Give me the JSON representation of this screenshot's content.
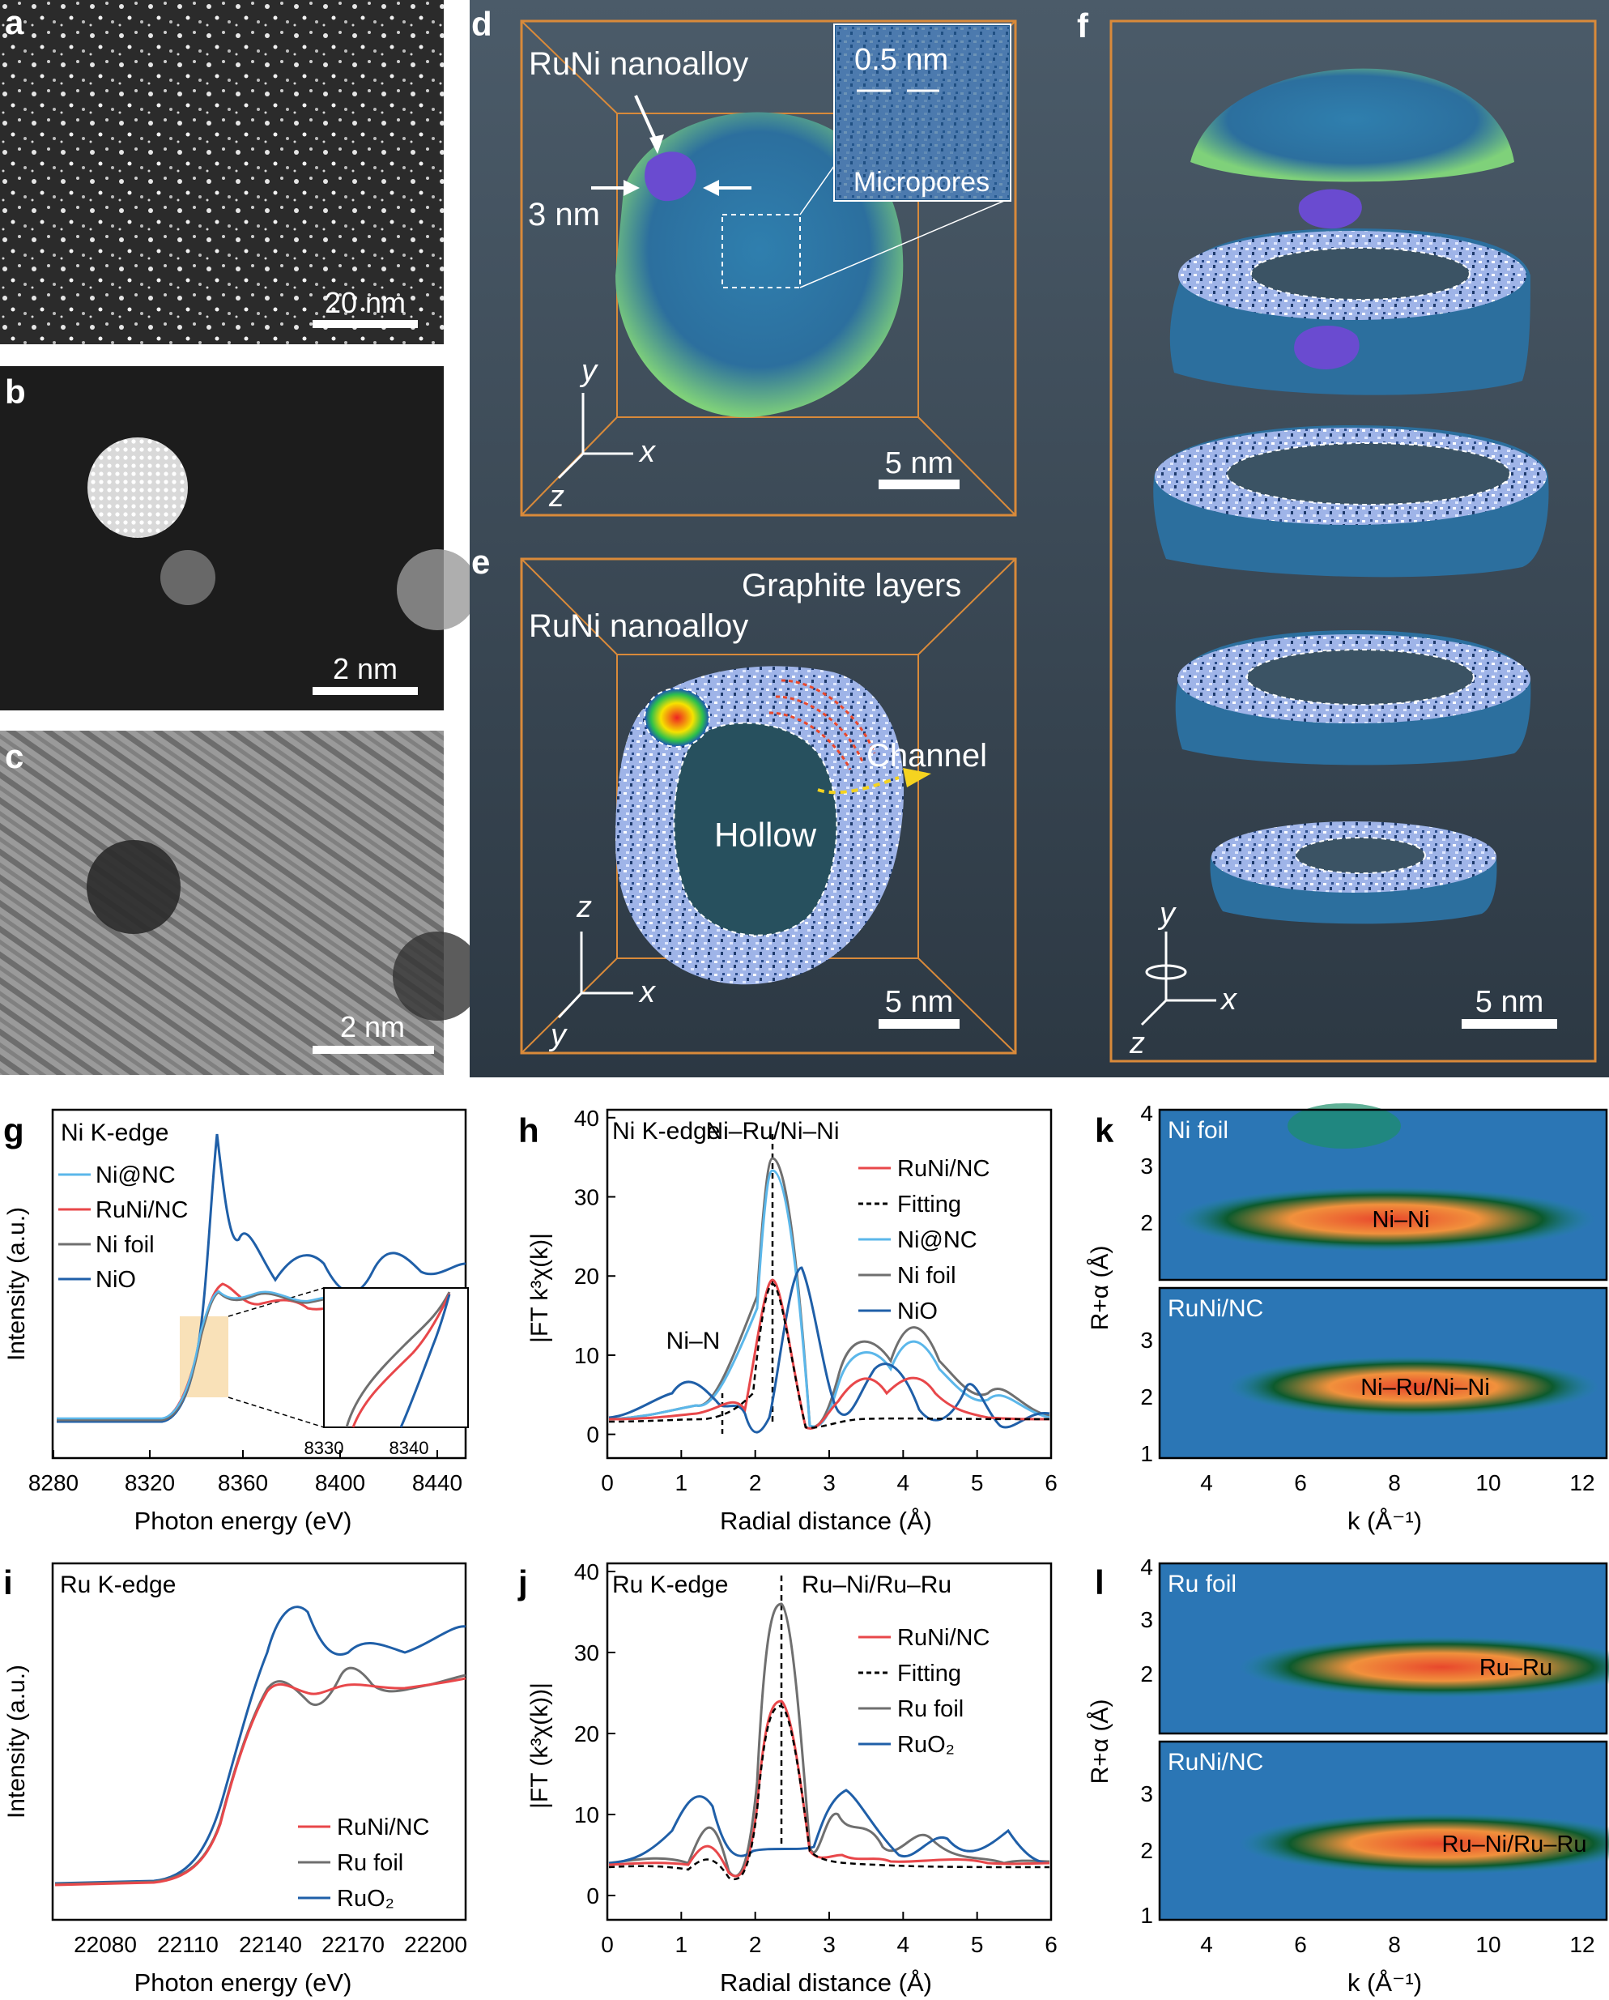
{
  "panel_letters": {
    "a": "a",
    "b": "b",
    "c": "c",
    "d": "d",
    "e": "e",
    "f": "f",
    "g": "g",
    "h": "h",
    "i": "i",
    "j": "j",
    "k": "k",
    "l": "l"
  },
  "scalebars": {
    "a": "20 nm",
    "b": "2 nm",
    "c": "2 nm",
    "d": "5 nm",
    "e": "5 nm",
    "f": "5 nm"
  },
  "panel_d": {
    "alloy_label": "RuNi nanoalloy",
    "size_label": "3 nm",
    "pore_label": "0.5 nm",
    "inset_label": "Micropores",
    "axis_y": "y",
    "axis_x": "x",
    "axis_z": "z"
  },
  "panel_e": {
    "alloy_label": "RuNi nanoalloy",
    "graphite_label": "Graphite layers",
    "channel_label": "Channel",
    "hollow_label": "Hollow",
    "axis_z": "z",
    "axis_x": "x",
    "axis_y": "y"
  },
  "panel_f": {
    "axis_y": "y",
    "axis_x": "x",
    "axis_z": "z"
  },
  "colors": {
    "runi": "#e8474a",
    "ni_nc": "#5bb7ea",
    "foil": "#6f6f6f",
    "oxide": "#1f5fa8",
    "fitting": "#000000",
    "orange_frame": "#d98a3a",
    "em_background": "#3d4d5c"
  },
  "chart_data": [
    {
      "id": "g",
      "type": "line",
      "title": "Ni K-edge",
      "xlabel": "Photon energy (eV)",
      "ylabel": "Intensity (a.u.)",
      "xlim": [
        8280,
        8450
      ],
      "xticks": [
        "8280",
        "8320",
        "8360",
        "8400",
        "8440"
      ],
      "series": [
        {
          "name": "Ni@NC"
        },
        {
          "name": "RuNi/NC"
        },
        {
          "name": "Ni foil"
        },
        {
          "name": "NiO"
        }
      ],
      "inset": {
        "xticks": [
          "8330",
          "8340"
        ],
        "xlim": [
          8327,
          8347
        ]
      }
    },
    {
      "id": "h",
      "type": "line",
      "title": "Ni K-edge",
      "xlabel": "Radial distance (Å)",
      "ylabel": "|FT k³χ(k)|",
      "xlim": [
        0,
        6
      ],
      "ylim": [
        -3,
        41
      ],
      "xticks": [
        "0",
        "1",
        "2",
        "3",
        "4",
        "5",
        "6"
      ],
      "yticks": [
        "0",
        "10",
        "20",
        "30",
        "40"
      ],
      "annotations": [
        "Ni–Ru/Ni–Ni",
        "Ni–N"
      ],
      "series": [
        {
          "name": "RuNi/NC"
        },
        {
          "name": "Fitting"
        },
        {
          "name": "Ni@NC"
        },
        {
          "name": "Ni foil"
        },
        {
          "name": "NiO"
        }
      ]
    },
    {
      "id": "k",
      "type": "heatmap",
      "xlabel": "k (Å⁻¹)",
      "ylabel": "R+α (Å)",
      "xlim": [
        3,
        12.5
      ],
      "ylim": [
        1,
        4
      ],
      "xticks": [
        "4",
        "6",
        "8",
        "10",
        "12"
      ],
      "yticks_top": [
        "2",
        "3",
        "4"
      ],
      "yticks_bottom": [
        "1",
        "2",
        "3"
      ],
      "maps": [
        {
          "name": "Ni foil",
          "label": "Ni–Ni"
        },
        {
          "name": "RuNi/NC",
          "label": "Ni–Ru/Ni–Ni"
        }
      ]
    },
    {
      "id": "i",
      "type": "line",
      "title": "Ru K-edge",
      "xlabel": "Photon energy (eV)",
      "ylabel": "Intensity (a.u.)",
      "xlim": [
        22060,
        22210
      ],
      "xticks": [
        "22080",
        "22110",
        "22140",
        "22170",
        "22200"
      ],
      "series": [
        {
          "name": "RuNi/NC"
        },
        {
          "name": "Ru foil"
        },
        {
          "name": "RuO₂"
        }
      ]
    },
    {
      "id": "j",
      "type": "line",
      "title": "Ru K-edge",
      "xlabel": "Radial distance (Å)",
      "ylabel": "|FT (k³χ(k))|",
      "xlim": [
        0,
        6
      ],
      "ylim": [
        -3,
        41
      ],
      "xticks": [
        "0",
        "1",
        "2",
        "3",
        "4",
        "5",
        "6"
      ],
      "yticks": [
        "0",
        "10",
        "20",
        "30",
        "40"
      ],
      "annotations": [
        "Ru–Ni/Ru–Ru"
      ],
      "series": [
        {
          "name": "RuNi/NC"
        },
        {
          "name": "Fitting"
        },
        {
          "name": "Ru foil"
        },
        {
          "name": "RuO₂"
        }
      ]
    },
    {
      "id": "l",
      "type": "heatmap",
      "xlabel": "k (Å⁻¹)",
      "ylabel": "R+α (Å)",
      "xlim": [
        3,
        12.5
      ],
      "ylim": [
        1,
        4
      ],
      "xticks": [
        "4",
        "6",
        "8",
        "10",
        "12"
      ],
      "yticks_top": [
        "2",
        "3",
        "4"
      ],
      "yticks_bottom": [
        "1",
        "2",
        "3"
      ],
      "maps": [
        {
          "name": "Ru foil",
          "label": "Ru–Ru"
        },
        {
          "name": "RuNi/NC",
          "label": "Ru–Ni/Ru–Ru"
        }
      ]
    }
  ]
}
